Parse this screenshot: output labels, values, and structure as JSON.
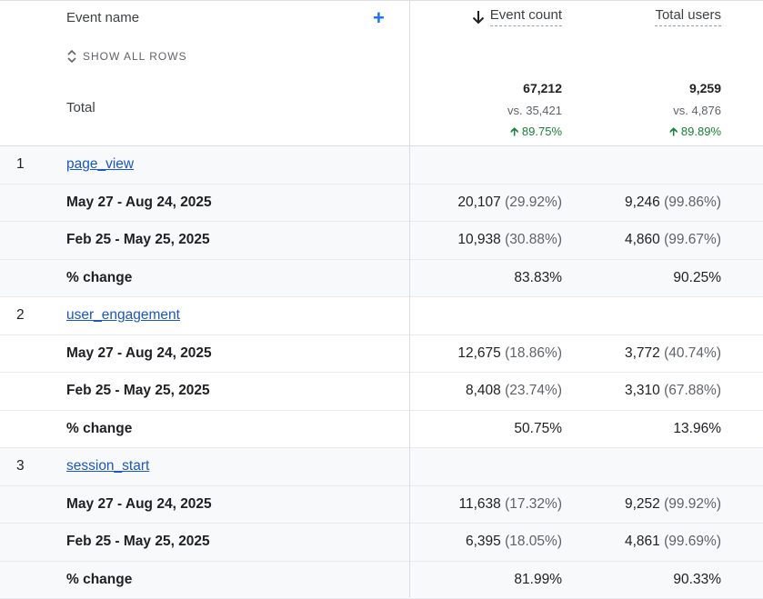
{
  "header": {
    "event_name": "Event name",
    "show_all_rows": "SHOW ALL ROWS",
    "total_label": "Total",
    "columns": [
      {
        "label": "Event count",
        "sorted": "descending",
        "total": "67,212",
        "vs": "vs. 35,421",
        "change": "89.75%"
      },
      {
        "label": "Total users",
        "total": "9,259",
        "vs": "vs. 4,876",
        "change": "89.89%"
      }
    ]
  },
  "colors": {
    "link": "#1a56c4",
    "positive": "#188038",
    "accent": "#1a73e8"
  },
  "groups": [
    {
      "index": "1",
      "name": "page_view",
      "rows": [
        {
          "label": "May 27 - Aug 24, 2025",
          "c1": "20,107",
          "c1p": "(29.92%)",
          "c2": "9,246",
          "c2p": "(99.86%)"
        },
        {
          "label": "Feb 25 - May 25, 2025",
          "c1": "10,938",
          "c1p": "(30.88%)",
          "c2": "4,860",
          "c2p": "(99.67%)"
        },
        {
          "label": "% change",
          "c1": "83.83%",
          "c1p": "",
          "c2": "90.25%",
          "c2p": ""
        }
      ]
    },
    {
      "index": "2",
      "name": "user_engagement",
      "rows": [
        {
          "label": "May 27 - Aug 24, 2025",
          "c1": "12,675",
          "c1p": "(18.86%)",
          "c2": "3,772",
          "c2p": "(40.74%)"
        },
        {
          "label": "Feb 25 - May 25, 2025",
          "c1": "8,408",
          "c1p": "(23.74%)",
          "c2": "3,310",
          "c2p": "(67.88%)"
        },
        {
          "label": "% change",
          "c1": "50.75%",
          "c1p": "",
          "c2": "13.96%",
          "c2p": ""
        }
      ]
    },
    {
      "index": "3",
      "name": "session_start",
      "rows": [
        {
          "label": "May 27 - Aug 24, 2025",
          "c1": "11,638",
          "c1p": "(17.32%)",
          "c2": "9,252",
          "c2p": "(99.92%)"
        },
        {
          "label": "Feb 25 - May 25, 2025",
          "c1": "6,395",
          "c1p": "(18.05%)",
          "c2": "4,861",
          "c2p": "(99.69%)"
        },
        {
          "label": "% change",
          "c1": "81.99%",
          "c1p": "",
          "c2": "90.33%",
          "c2p": ""
        }
      ]
    }
  ]
}
